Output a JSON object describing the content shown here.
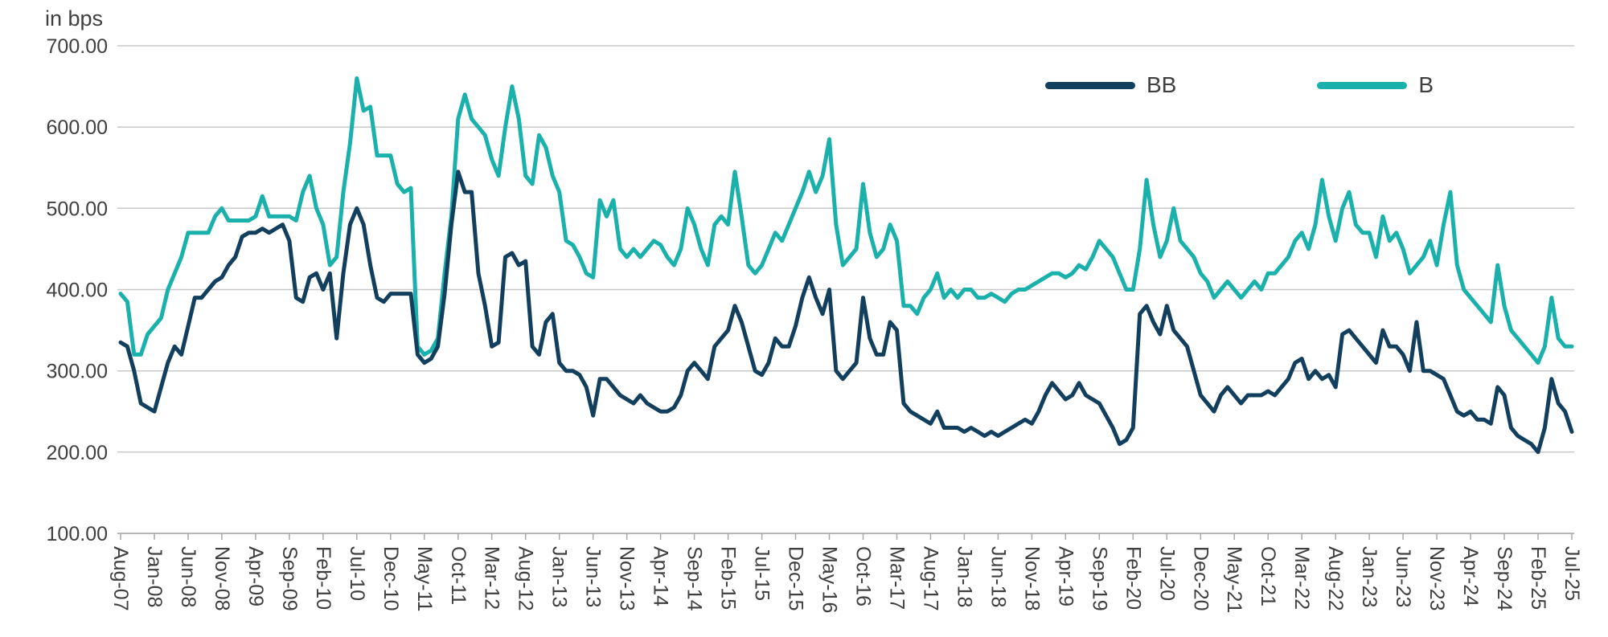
{
  "chart": {
    "colors": {
      "bb": "#123f5e",
      "b": "#1ab0ab",
      "grid": "#c8c8c8",
      "axis": "#a8a8a8",
      "text": "#3f3f3f"
    }
  },
  "chart_data": {
    "type": "line",
    "title": "",
    "ylabel": "in bps",
    "xlabel": "",
    "ylim": [
      100,
      700
    ],
    "y_ticks": [
      700,
      600,
      500,
      400,
      300,
      200,
      100
    ],
    "y_tick_labels": [
      "700.00",
      "600.00",
      "500.00",
      "400.00",
      "300.00",
      "200.00",
      "100.00"
    ],
    "grid": "horizontal",
    "legend_position": "top-right",
    "x_unit": "month",
    "x_start": "Aug-07",
    "x_end": "Jul-25",
    "x_tick_every": 5,
    "x_tick_labels": [
      "Aug-07",
      "Jan-08",
      "Jun-08",
      "Nov-08",
      "Apr-09",
      "Sep-09",
      "Feb-10",
      "Jul-10",
      "Dec-10",
      "May-11",
      "Oct-11",
      "Mar-12",
      "Aug-12",
      "Jan-13",
      "Jun-13",
      "Nov-13",
      "Apr-14",
      "Sep-14",
      "Feb-15",
      "Jul-15",
      "Dec-15",
      "May-16",
      "Oct-16",
      "Mar-17",
      "Aug-17",
      "Jan-18",
      "Jun-18",
      "Nov-18",
      "Apr-19",
      "Sep-19",
      "Feb-20",
      "Jul-20",
      "Dec-20",
      "May-21",
      "Oct-21",
      "Mar-22",
      "Aug-22",
      "Jan-23",
      "Jun-23",
      "Nov-23",
      "Apr-24",
      "Sep-24",
      "Feb-25",
      "Jul-25"
    ],
    "series": [
      {
        "name": "BB",
        "color": "#123f5e",
        "values": [
          335,
          330,
          300,
          260,
          255,
          250,
          280,
          310,
          330,
          320,
          355,
          390,
          390,
          400,
          410,
          415,
          430,
          440,
          465,
          470,
          470,
          475,
          470,
          475,
          480,
          460,
          390,
          385,
          415,
          420,
          400,
          420,
          340,
          420,
          480,
          500,
          480,
          430,
          390,
          385,
          395,
          395,
          395,
          395,
          320,
          310,
          315,
          330,
          395,
          480,
          545,
          520,
          520,
          420,
          380,
          330,
          335,
          440,
          445,
          430,
          435,
          330,
          320,
          360,
          370,
          310,
          300,
          300,
          295,
          280,
          245,
          290,
          290,
          280,
          270,
          265,
          260,
          270,
          260,
          255,
          250,
          250,
          255,
          270,
          300,
          310,
          300,
          290,
          330,
          340,
          350,
          380,
          360,
          330,
          300,
          295,
          310,
          340,
          330,
          330,
          355,
          390,
          415,
          390,
          370,
          400,
          300,
          290,
          300,
          310,
          390,
          340,
          320,
          320,
          360,
          350,
          260,
          250,
          245,
          240,
          235,
          250,
          230,
          230,
          230,
          225,
          230,
          225,
          220,
          225,
          220,
          225,
          230,
          235,
          240,
          235,
          250,
          270,
          285,
          275,
          265,
          270,
          285,
          270,
          265,
          260,
          245,
          230,
          210,
          215,
          230,
          370,
          380,
          360,
          345,
          380,
          350,
          340,
          330,
          300,
          270,
          260,
          250,
          270,
          280,
          270,
          260,
          270,
          270,
          270,
          275,
          270,
          280,
          290,
          310,
          315,
          290,
          300,
          290,
          295,
          280,
          345,
          350,
          340,
          330,
          320,
          310,
          350,
          330,
          330,
          320,
          300,
          360,
          300,
          300,
          295,
          290,
          270,
          250,
          245,
          250,
          240,
          240,
          235,
          280,
          270,
          230,
          220,
          215,
          210,
          200,
          230,
          290,
          260,
          250,
          225
        ]
      },
      {
        "name": "B",
        "color": "#1ab0ab",
        "values": [
          395,
          385,
          320,
          320,
          345,
          355,
          365,
          400,
          420,
          440,
          470,
          470,
          470,
          470,
          490,
          500,
          485,
          485,
          485,
          485,
          490,
          515,
          490,
          490,
          490,
          490,
          485,
          520,
          540,
          500,
          480,
          430,
          440,
          520,
          580,
          660,
          620,
          625,
          565,
          565,
          565,
          530,
          520,
          525,
          330,
          320,
          325,
          340,
          420,
          490,
          610,
          640,
          610,
          600,
          590,
          560,
          540,
          600,
          650,
          610,
          540,
          530,
          590,
          575,
          540,
          520,
          460,
          455,
          440,
          420,
          415,
          510,
          490,
          510,
          450,
          440,
          450,
          440,
          450,
          460,
          455,
          440,
          430,
          450,
          500,
          480,
          450,
          430,
          480,
          490,
          480,
          545,
          490,
          430,
          420,
          430,
          450,
          470,
          460,
          480,
          500,
          520,
          545,
          520,
          540,
          585,
          480,
          430,
          440,
          450,
          530,
          470,
          440,
          450,
          480,
          460,
          380,
          380,
          370,
          390,
          400,
          420,
          390,
          400,
          390,
          400,
          400,
          390,
          390,
          395,
          390,
          385,
          395,
          400,
          400,
          405,
          410,
          415,
          420,
          420,
          415,
          420,
          430,
          425,
          440,
          460,
          450,
          440,
          420,
          400,
          400,
          450,
          535,
          480,
          440,
          460,
          500,
          460,
          450,
          440,
          420,
          410,
          390,
          400,
          410,
          400,
          390,
          400,
          410,
          400,
          420,
          420,
          430,
          440,
          460,
          470,
          450,
          480,
          535,
          490,
          460,
          500,
          520,
          480,
          470,
          470,
          440,
          490,
          460,
          470,
          450,
          420,
          430,
          440,
          460,
          430,
          480,
          520,
          430,
          400,
          390,
          380,
          370,
          360,
          430,
          380,
          350,
          340,
          330,
          320,
          310,
          330,
          390,
          340,
          330,
          330
        ]
      }
    ]
  }
}
